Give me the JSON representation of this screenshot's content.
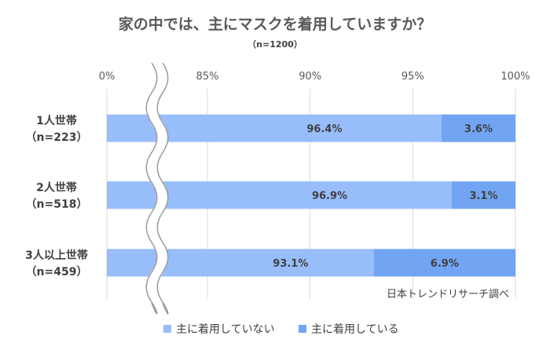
{
  "chart_data": {
    "type": "bar",
    "orientation": "horizontal",
    "stacked": true,
    "title": "家の中では、主にマスクを着用していますか？",
    "subtitle": "（n=1200）",
    "x_axis": {
      "ticks": [
        "0%",
        "85%",
        "90%",
        "95%",
        "100%"
      ],
      "tick_values": [
        0,
        85,
        90,
        95,
        100
      ],
      "broken_between": [
        0,
        85
      ],
      "position": "top",
      "gridlines": true
    },
    "categories": [
      {
        "line1": "1人世帯",
        "line2": "（n=223）"
      },
      {
        "line1": "2人世帯",
        "line2": "（n=518）"
      },
      {
        "line1": "3人以上世帯",
        "line2": "（n=459）"
      }
    ],
    "series": [
      {
        "name": "主に着用していない",
        "color": "#97bdfa",
        "values": [
          96.4,
          96.9,
          93.1
        ],
        "labels": [
          "96.4%",
          "96.9%",
          "93.1%"
        ]
      },
      {
        "name": "主に着用している",
        "color": "#71a4f2",
        "values": [
          3.6,
          3.1,
          6.9
        ],
        "labels": [
          "3.6%",
          "3.1%",
          "6.9%"
        ]
      }
    ],
    "legend_position": "bottom",
    "source_note": "日本トレンドリサーチ調べ"
  }
}
